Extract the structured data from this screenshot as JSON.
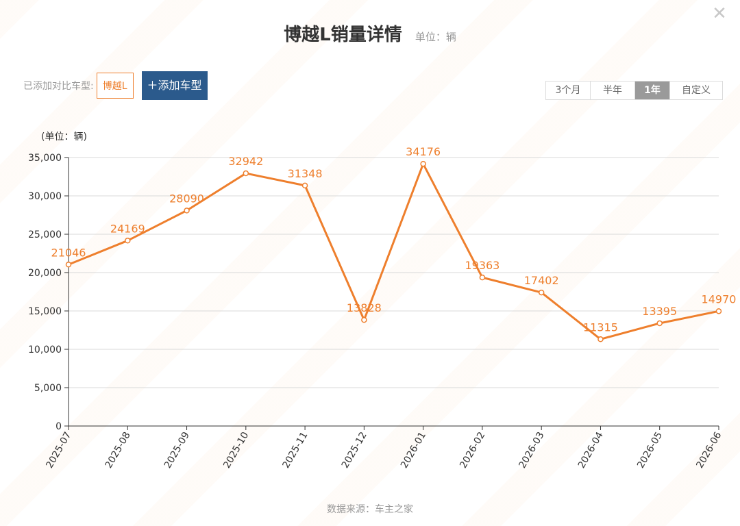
{
  "header": {
    "title": "博越L销量详情",
    "unit": "单位：辆",
    "close_icon": "close-icon"
  },
  "compare": {
    "label": "已添加对比车型:",
    "car_tag": "博越L",
    "add_button": "＋添加车型"
  },
  "range_tabs": [
    {
      "label": "3个月",
      "active": false
    },
    {
      "label": "半年",
      "active": false
    },
    {
      "label": "1年",
      "active": true
    },
    {
      "label": "自定义",
      "active": false
    }
  ],
  "source": "数据来源：车主之家",
  "colors": {
    "series": "#ee7f2d",
    "axis": "#333333",
    "grid": "#d8d8d8",
    "active_tab": "#9a9a9a",
    "add_button": "#2b5a8c"
  },
  "chart_data": {
    "type": "line",
    "title": "博越L销量详情",
    "ylabel": "(单位：辆)",
    "xlabel": "",
    "ylim": [
      0,
      35000
    ],
    "y_ticks": [
      0,
      5000,
      10000,
      15000,
      20000,
      25000,
      30000,
      35000
    ],
    "y_tick_labels": [
      "0",
      "5,000",
      "10,000",
      "15,000",
      "20,000",
      "25,000",
      "30,000",
      "35,000"
    ],
    "grid": true,
    "categories": [
      "2025-07",
      "2025-08",
      "2025-09",
      "2025-10",
      "2025-11",
      "2025-12",
      "2026-01",
      "2026-02",
      "2026-03",
      "2026-04",
      "2026-05",
      "2026-06"
    ],
    "series": [
      {
        "values": [
          21046,
          24169,
          28090,
          32942,
          31348,
          13828,
          34176,
          19363,
          17402,
          11315,
          13395,
          14970
        ],
        "data_labels": [
          "21046",
          "24169",
          "28090",
          "32942",
          "31348",
          "13828",
          "34176",
          "19363",
          "17402",
          "11315",
          "13395",
          "14970"
        ]
      }
    ]
  }
}
